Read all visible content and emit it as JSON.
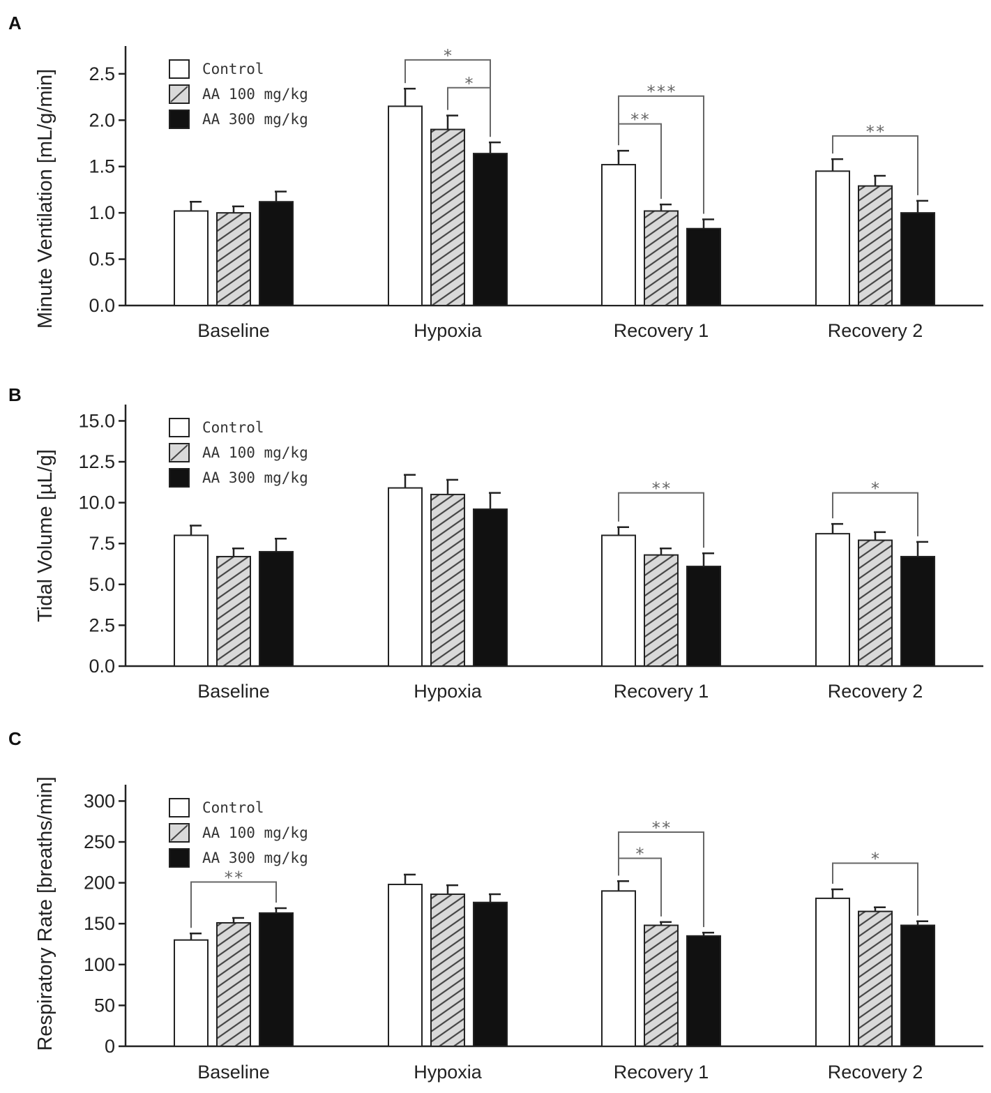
{
  "chart_data": [
    {
      "type": "bar",
      "panel": "A",
      "ylabel": "Minute Ventilation [mL/g/min]",
      "xlabel": "",
      "ylim": [
        0,
        2.8
      ],
      "yticks": [
        "0.0",
        "0.5",
        "1.0",
        "1.5",
        "2.0",
        "2.5"
      ],
      "ytick_values": [
        0,
        0.5,
        1.0,
        1.5,
        2.0,
        2.5
      ],
      "categories": [
        "Baseline",
        "Hypoxia",
        "Recovery 1",
        "Recovery 2"
      ],
      "series": [
        {
          "name": "Control",
          "values": [
            1.02,
            2.15,
            1.52,
            1.45
          ],
          "errors": [
            0.1,
            0.19,
            0.15,
            0.13
          ]
        },
        {
          "name": "AA 100 mg/kg",
          "values": [
            1.0,
            1.9,
            1.02,
            1.29
          ],
          "errors": [
            0.07,
            0.15,
            0.07,
            0.11
          ]
        },
        {
          "name": "AA 300 mg/kg",
          "values": [
            1.12,
            1.64,
            0.83,
            1.0
          ],
          "errors": [
            0.11,
            0.12,
            0.1,
            0.13
          ]
        }
      ],
      "legend": [
        "Control",
        "AA 100 mg/kg",
        "AA 300 mg/kg"
      ],
      "legend_position": "top-left",
      "significance": [
        {
          "category": 1,
          "from": 0,
          "to": 2,
          "level": 2.65,
          "label": "*"
        },
        {
          "category": 1,
          "from": 1,
          "to": 2,
          "level": 2.35,
          "label": "*"
        },
        {
          "category": 2,
          "from": 0,
          "to": 2,
          "level": 2.26,
          "label": "***"
        },
        {
          "category": 2,
          "from": 0,
          "to": 1,
          "level": 1.96,
          "label": "**"
        },
        {
          "category": 3,
          "from": 0,
          "to": 2,
          "level": 1.83,
          "label": "**"
        }
      ]
    },
    {
      "type": "bar",
      "panel": "B",
      "ylabel": "Tidal Volume [µL/g]",
      "xlabel": "",
      "ylim": [
        0,
        16
      ],
      "yticks": [
        "0.0",
        "2.5",
        "5.0",
        "7.5",
        "10.0",
        "12.5",
        "15.0"
      ],
      "ytick_values": [
        0,
        2.5,
        5.0,
        7.5,
        10.0,
        12.5,
        15.0
      ],
      "categories": [
        "Baseline",
        "Hypoxia",
        "Recovery 1",
        "Recovery 2"
      ],
      "series": [
        {
          "name": "Control",
          "values": [
            8.0,
            10.9,
            8.0,
            8.1
          ],
          "errors": [
            0.6,
            0.8,
            0.5,
            0.6
          ]
        },
        {
          "name": "AA 100 mg/kg",
          "values": [
            6.7,
            10.5,
            6.8,
            7.7
          ],
          "errors": [
            0.5,
            0.9,
            0.4,
            0.5
          ]
        },
        {
          "name": "AA 300 mg/kg",
          "values": [
            7.0,
            9.6,
            6.1,
            6.7
          ],
          "errors": [
            0.8,
            1.0,
            0.8,
            0.9
          ]
        }
      ],
      "legend": [
        "Control",
        "AA 100 mg/kg",
        "AA 300 mg/kg"
      ],
      "legend_position": "top-left",
      "significance": [
        {
          "category": 2,
          "from": 0,
          "to": 2,
          "level": 10.6,
          "label": "**"
        },
        {
          "category": 3,
          "from": 0,
          "to": 2,
          "level": 10.6,
          "label": "*"
        }
      ]
    },
    {
      "type": "bar",
      "panel": "C",
      "ylabel": "Respiratory Rate [breaths/min]",
      "xlabel": "",
      "ylim": [
        0,
        320
      ],
      "yticks": [
        "0",
        "50",
        "100",
        "150",
        "200",
        "250",
        "300"
      ],
      "ytick_values": [
        0,
        50,
        100,
        150,
        200,
        250,
        300
      ],
      "categories": [
        "Baseline",
        "Hypoxia",
        "Recovery 1",
        "Recovery 2"
      ],
      "series": [
        {
          "name": "Control",
          "values": [
            130,
            198,
            190,
            181
          ],
          "errors": [
            8,
            12,
            12,
            11
          ]
        },
        {
          "name": "AA 100 mg/kg",
          "values": [
            151,
            186,
            148,
            165
          ],
          "errors": [
            6,
            11,
            4,
            5
          ]
        },
        {
          "name": "AA 300 mg/kg",
          "values": [
            163,
            176,
            135,
            148
          ],
          "errors": [
            6,
            10,
            4,
            5
          ]
        }
      ],
      "legend": [
        "Control",
        "AA 100 mg/kg",
        "AA 300 mg/kg"
      ],
      "legend_position": "top-left",
      "significance": [
        {
          "category": 0,
          "from": 0,
          "to": 2,
          "level": 201,
          "label": "**"
        },
        {
          "category": 2,
          "from": 0,
          "to": 2,
          "level": 262,
          "label": "**"
        },
        {
          "category": 2,
          "from": 0,
          "to": 1,
          "level": 230,
          "label": "*"
        },
        {
          "category": 3,
          "from": 0,
          "to": 2,
          "level": 224,
          "label": "*"
        }
      ]
    }
  ],
  "colors": {
    "axis": "#222222",
    "control_fill": "#ffffff",
    "aa100_fill": "#d9d9d9",
    "aa100_hatch": "#444444",
    "aa300_fill": "#111111",
    "bar_edge": "#222222",
    "significance": "#666666"
  }
}
